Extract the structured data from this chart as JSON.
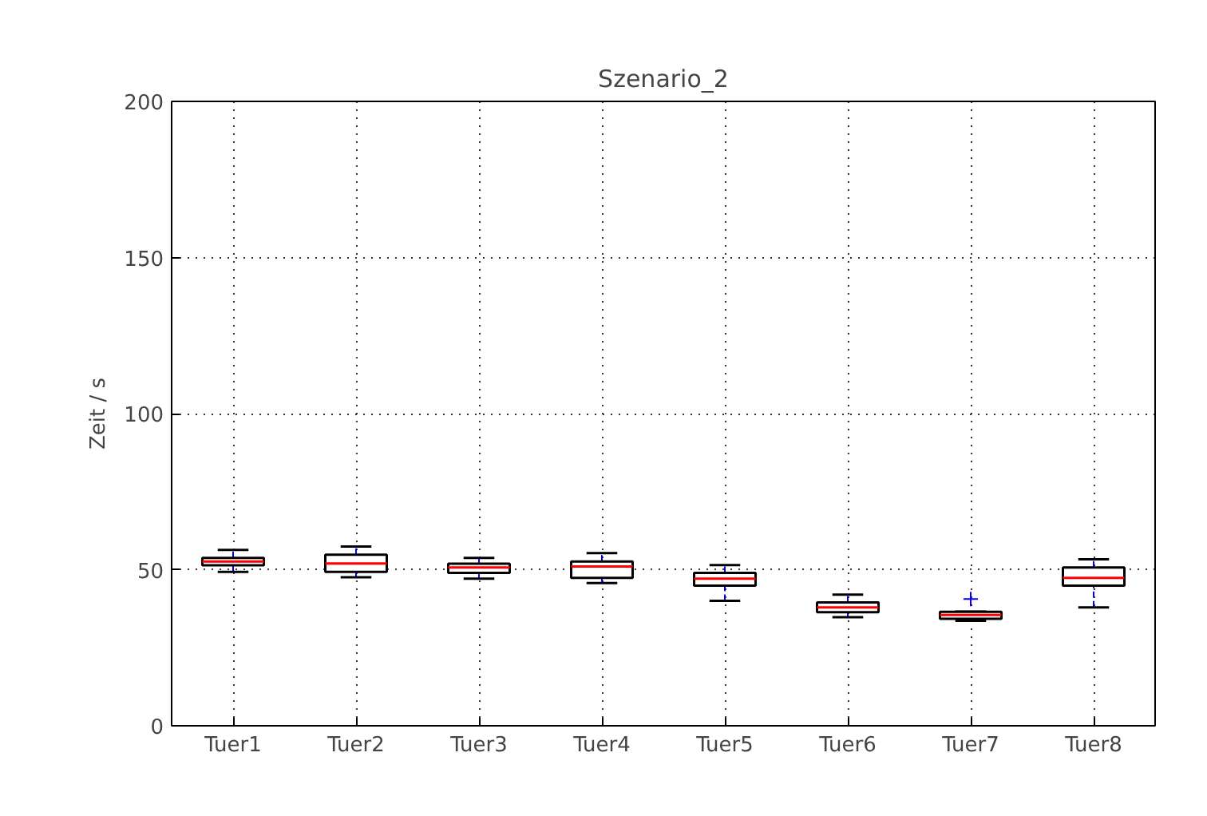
{
  "chart_data": {
    "type": "box",
    "title": "Szenario_2",
    "ylabel": "Zeit / s",
    "categories": [
      "Tuer1",
      "Tuer2",
      "Tuer3",
      "Tuer4",
      "Tuer5",
      "Tuer6",
      "Tuer7",
      "Tuer8"
    ],
    "boxes": [
      {
        "low": 49.3,
        "q1": 51.4,
        "median": 52.6,
        "q3": 53.8,
        "high": 56.3
      },
      {
        "low": 47.6,
        "q1": 49.3,
        "median": 52,
        "q3": 54.8,
        "high": 57.4
      },
      {
        "low": 47.1,
        "q1": 49,
        "median": 50.7,
        "q3": 51.9,
        "high": 53.8
      },
      {
        "low": 45.7,
        "q1": 47.4,
        "median": 51,
        "q3": 52.6,
        "high": 55.3
      },
      {
        "low": 40,
        "q1": 44.9,
        "median": 47.1,
        "q3": 49,
        "high": 51.5
      },
      {
        "low": 34.8,
        "q1": 36.4,
        "median": 37.9,
        "q3": 39.5,
        "high": 42
      },
      {
        "low": 33.6,
        "q1": 34.3,
        "median": 35.5,
        "q3": 36.5,
        "high": 36.6,
        "outliers": [
          40.6
        ]
      },
      {
        "low": 37.9,
        "q1": 44.9,
        "median": 47.4,
        "q3": 50.7,
        "high": 53.3
      }
    ],
    "ylim": [
      0,
      200
    ],
    "yticks": [
      0,
      50,
      100,
      150,
      200
    ],
    "grid": true
  }
}
